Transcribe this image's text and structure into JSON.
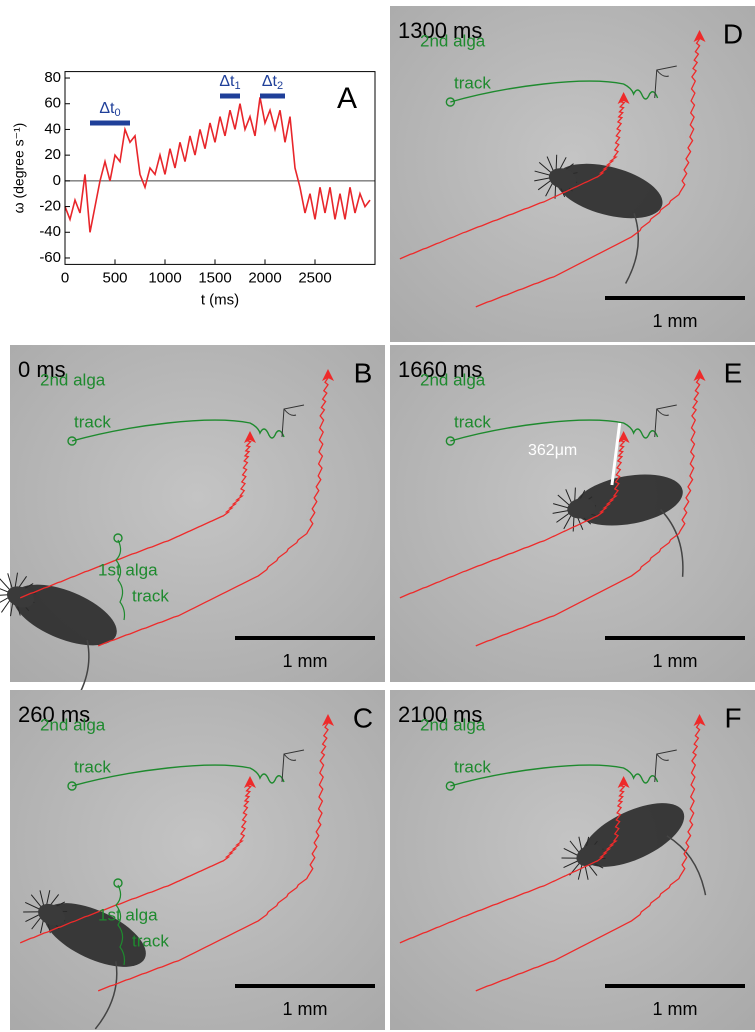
{
  "chart_data": {
    "type": "line",
    "panel_letter": "A",
    "xlabel": "t (ms)",
    "ylabel": "ω (degree s⁻¹)",
    "xlim": [
      0,
      3100
    ],
    "ylim": [
      -65,
      85
    ],
    "xticks": [
      0,
      500,
      1000,
      1500,
      2000,
      2500
    ],
    "yticks": [
      80,
      60,
      40,
      20,
      0,
      -20,
      -40,
      -60
    ],
    "reference_line": 0,
    "x": [
      0,
      50,
      100,
      150,
      200,
      250,
      300,
      350,
      400,
      450,
      500,
      550,
      600,
      650,
      700,
      750,
      800,
      850,
      900,
      950,
      1000,
      1050,
      1100,
      1150,
      1200,
      1250,
      1300,
      1350,
      1400,
      1450,
      1500,
      1550,
      1600,
      1650,
      1700,
      1750,
      1800,
      1850,
      1900,
      1950,
      2000,
      2050,
      2100,
      2150,
      2200,
      2250,
      2300,
      2350,
      2400,
      2450,
      2500,
      2550,
      2600,
      2650,
      2700,
      2750,
      2800,
      2850,
      2900,
      2950,
      3000,
      3050
    ],
    "series": [
      {
        "color": "#e8262b",
        "values": [
          -20,
          -30,
          -15,
          -25,
          5,
          -40,
          -20,
          0,
          15,
          0,
          20,
          15,
          40,
          30,
          35,
          5,
          -5,
          10,
          5,
          20,
          5,
          25,
          10,
          30,
          15,
          35,
          20,
          40,
          25,
          45,
          30,
          50,
          35,
          55,
          40,
          60,
          40,
          50,
          35,
          65,
          45,
          55,
          40,
          55,
          30,
          50,
          10,
          -5,
          -25,
          -10,
          -30,
          -5,
          -25,
          -5,
          -30,
          -10,
          -30,
          -5,
          -25,
          -10,
          -20,
          -15
        ]
      }
    ],
    "annotations": [
      {
        "label_base": "Δt",
        "label_sub": "0",
        "start": 250,
        "end": 650,
        "y": 45,
        "color": "#1f3f99"
      },
      {
        "label_base": "Δt",
        "label_sub": "1",
        "start": 1550,
        "end": 1750,
        "y": 66,
        "color": "#1f3f99"
      },
      {
        "label_base": "Δt",
        "label_sub": "2",
        "start": 1950,
        "end": 2200,
        "y": 66,
        "color": "#1f3f99"
      }
    ]
  },
  "panels": [
    {
      "letter": "D",
      "time": "1300 ms",
      "second_alga": [
        "2nd alga",
        "track"
      ],
      "scale": "1 mm"
    },
    {
      "letter": "B",
      "time": "0 ms",
      "second_alga": [
        "2nd alga",
        "track"
      ],
      "first_alga": [
        "1st alga",
        "track"
      ],
      "scale": "1 mm"
    },
    {
      "letter": "E",
      "time": "1660 ms",
      "second_alga": [
        "2nd alga",
        "track"
      ],
      "distance": "362μm",
      "scale": "1 mm"
    },
    {
      "letter": "C",
      "time": "260 ms",
      "second_alga": [
        "2nd alga",
        "track"
      ],
      "first_alga": [
        "1st alga",
        "track"
      ],
      "scale": "1 mm"
    },
    {
      "letter": "F",
      "time": "2100 ms",
      "second_alga": [
        "2nd alga",
        "track"
      ],
      "scale": "1 mm"
    }
  ]
}
